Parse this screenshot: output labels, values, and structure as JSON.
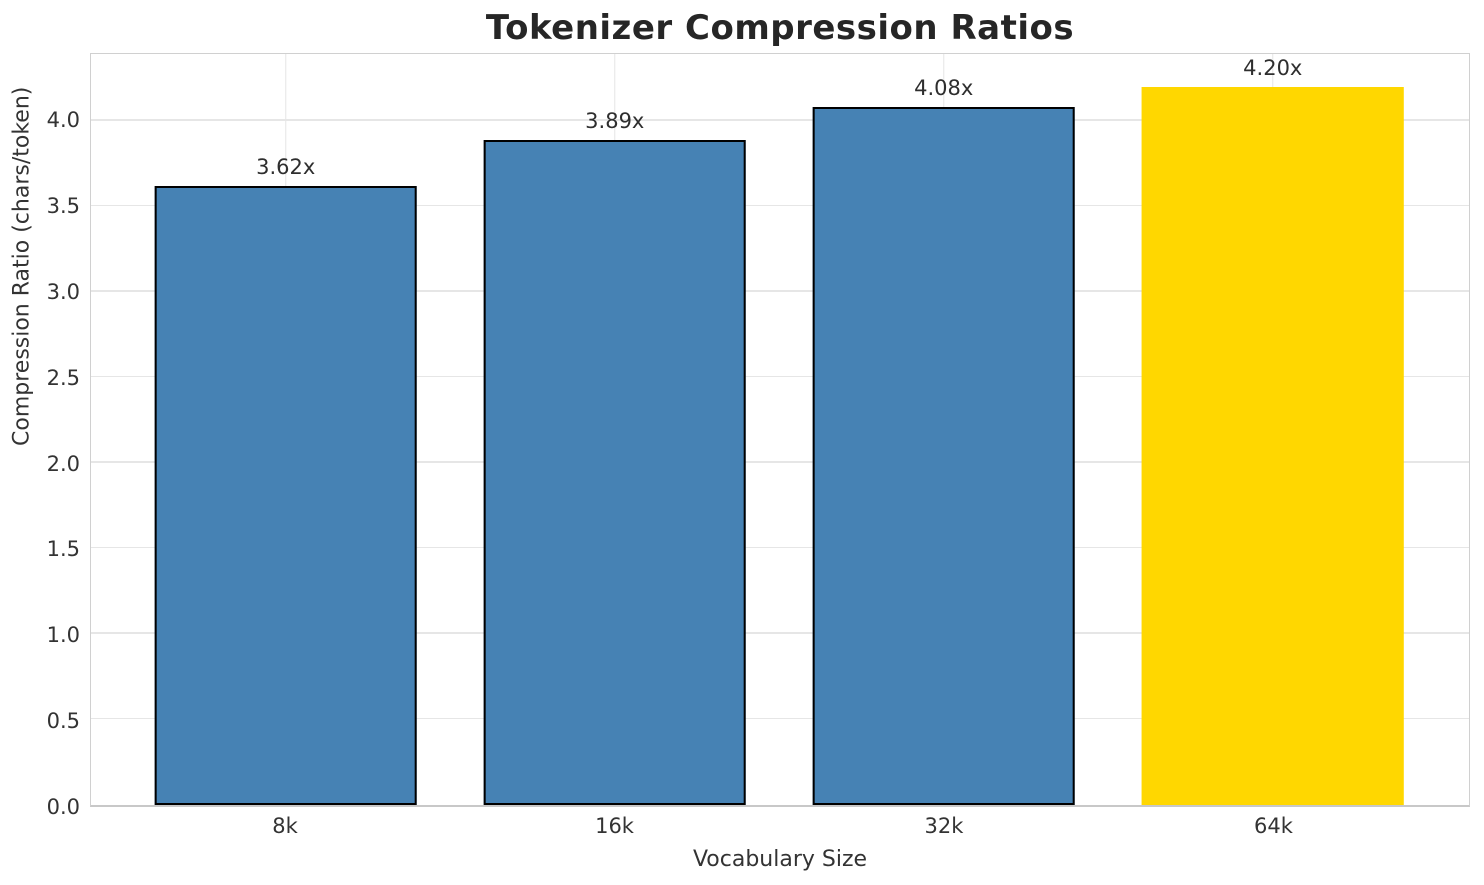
{
  "chart_data": {
    "type": "bar",
    "title": "Tokenizer Compression Ratios",
    "xlabel": "Vocabulary Size",
    "ylabel": "Compression Ratio (chars/token)",
    "categories": [
      "8k",
      "16k",
      "32k",
      "64k"
    ],
    "values": [
      3.62,
      3.89,
      4.08,
      4.2
    ],
    "bar_labels": [
      "3.62x",
      "3.89x",
      "4.08x",
      "4.20x"
    ],
    "bar_colors": [
      "#4682B4",
      "#4682B4",
      "#4682B4",
      "#FFD700"
    ],
    "bar_edge_colors": [
      "#000000",
      "#000000",
      "#000000",
      "#FFD700"
    ],
    "yticks": [
      0.0,
      0.5,
      1.0,
      1.5,
      2.0,
      2.5,
      3.0,
      3.5,
      4.0
    ],
    "ytick_labels": [
      "0.0",
      "0.5",
      "1.0",
      "1.5",
      "2.0",
      "2.5",
      "3.0",
      "3.5",
      "4.0"
    ],
    "ylim": [
      0,
      4.39
    ],
    "grid": true,
    "legend_position": "none",
    "colors": {
      "bar_default": "#4682B4",
      "bar_highlight": "#FFD700",
      "bar_edge": "#000000",
      "grid": "#E6E6E6",
      "spine": "#D0D0D0",
      "title_text": "#262626",
      "label_text": "#333333"
    }
  }
}
